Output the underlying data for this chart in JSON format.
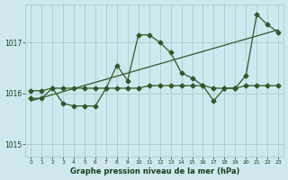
{
  "title": "Graphe pression niveau de la mer (hPa)",
  "bg_color": "#cfe8ef",
  "grid_color": "#aacccc",
  "line_color": "#2d5a27",
  "text_color": "#1a3d1a",
  "xlim": [
    -0.5,
    23.5
  ],
  "ylim": [
    1014.75,
    1017.75
  ],
  "yticks": [
    1015,
    1016,
    1017
  ],
  "xticks": [
    0,
    1,
    2,
    3,
    4,
    5,
    6,
    7,
    8,
    9,
    10,
    11,
    12,
    13,
    14,
    15,
    16,
    17,
    18,
    19,
    20,
    21,
    22,
    23
  ],
  "series1": [
    1015.9,
    1015.9,
    1016.1,
    1015.8,
    1015.75,
    1015.75,
    1015.75,
    1016.1,
    1016.55,
    1016.25,
    1017.15,
    1017.15,
    1017.0,
    1016.8,
    1016.4,
    1016.3,
    1016.15,
    1015.85,
    1016.1,
    1016.1,
    1016.35,
    1017.55,
    1017.35,
    1017.2
  ],
  "series2": [
    1016.05,
    1016.05,
    1016.1,
    1016.1,
    1016.1,
    1016.1,
    1016.1,
    1016.1,
    1016.1,
    1016.1,
    1016.1,
    1016.15,
    1016.15,
    1016.15,
    1016.15,
    1016.15,
    1016.15,
    1016.1,
    1016.1,
    1016.1,
    1016.15,
    1016.15,
    1016.15,
    1016.15
  ],
  "series3_x": [
    0,
    23
  ],
  "series3_y": [
    1015.85,
    1017.25
  ]
}
